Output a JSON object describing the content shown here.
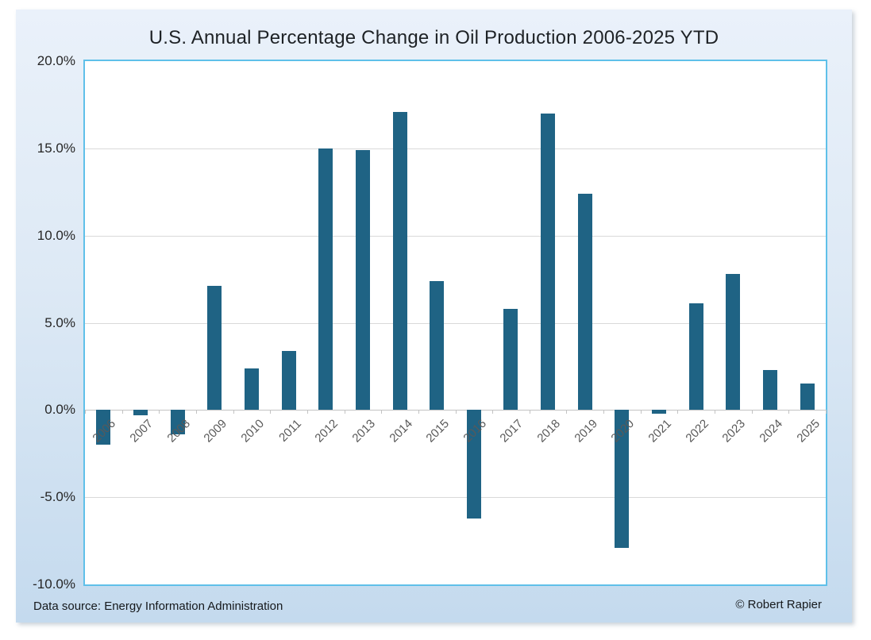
{
  "chart_data": {
    "type": "bar",
    "title": "U.S. Annual Percentage Change in Oil Production 2006-2025 YTD",
    "categories": [
      "2006",
      "2007",
      "2008",
      "2009",
      "2010",
      "2011",
      "2012",
      "2013",
      "2014",
      "2015",
      "2016",
      "2017",
      "2018",
      "2019",
      "2020",
      "2021",
      "2022",
      "2023",
      "2024",
      "2025"
    ],
    "values": [
      -2.0,
      -0.3,
      -1.4,
      7.1,
      2.4,
      3.4,
      15.0,
      14.9,
      17.1,
      7.4,
      -6.2,
      5.8,
      17.0,
      12.4,
      -7.9,
      -0.2,
      6.1,
      7.8,
      2.3,
      1.5
    ],
    "xlabel": "",
    "ylabel": "",
    "ylim": [
      -10,
      20
    ],
    "ytick_interval": 5,
    "ytick_labels": [
      "20.0%",
      "15.0%",
      "10.0%",
      "5.0%",
      "0.0%",
      "-5.0%",
      "-10.0%"
    ],
    "grid": "horizontal",
    "legend_position": "none",
    "bar_color": "#1f6384"
  },
  "footer": {
    "source": "Data source: Energy Information Administration",
    "credit": "© Robert Rapier"
  },
  "colors": {
    "bar": "#1f6384",
    "plot_border": "#5fc0e9",
    "gridline": "#d9d9d9",
    "zero_axis": "#c3c3c3",
    "card_background_top": "#eaf1fa",
    "card_background_bottom": "#c4daee",
    "title_text": "#1e2226",
    "axis_label_text": "#595959"
  }
}
